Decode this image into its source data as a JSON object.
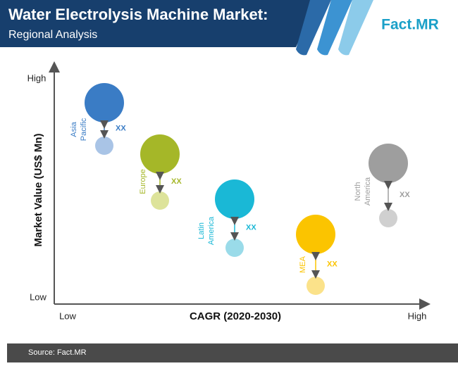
{
  "header": {
    "title": "Water Electrolysis Machine Market:",
    "subtitle": "Regional Analysis",
    "brand": "Fact.MR"
  },
  "axes": {
    "y_title": "Market Value (US$ Mn)",
    "y_high": "High",
    "y_low": "Low",
    "x_title": "CAGR (2020-2030)",
    "x_low": "Low",
    "x_high": "High"
  },
  "regions": [
    {
      "label_lines": [
        "Asia",
        "Pacific"
      ],
      "note": "XX",
      "color": "#3a7cc5",
      "light": "#a9c4e6"
    },
    {
      "label_lines": [
        "Europe"
      ],
      "note": "XX",
      "color": "#a5b728",
      "light": "#dde39a"
    },
    {
      "label_lines": [
        "Latin",
        "America"
      ],
      "note": "XX",
      "color": "#1ab8d6",
      "light": "#9adbe9"
    },
    {
      "label_lines": [
        "MEA"
      ],
      "note": "XX",
      "color": "#fbc400",
      "light": "#fbe28a"
    },
    {
      "label_lines": [
        "North",
        "America"
      ],
      "note": "XX",
      "color": "#9e9e9e",
      "light": "#d0d0d0"
    }
  ],
  "footer": {
    "source": "Source: Fact.MR"
  }
}
